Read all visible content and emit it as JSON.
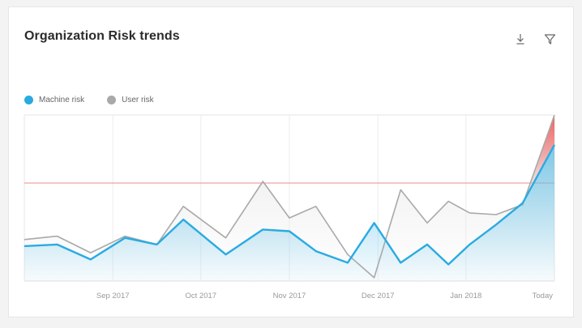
{
  "card": {
    "title": "Organization Risk trends",
    "actions": [
      {
        "name": "download",
        "icon": "download-icon"
      },
      {
        "name": "filter",
        "icon": "filter-icon"
      }
    ]
  },
  "colors": {
    "machine_risk": "#29abe2",
    "user_risk": "#a9a9a9",
    "threshold": "#f28b8b",
    "high_risk_fill": "#f25b5b"
  },
  "chart_data": {
    "type": "area",
    "title": "Organization Risk trends",
    "x_ticks": [
      "Sep 2017",
      "Oct 2017",
      "Nov 2017",
      "Dec 2017",
      "Jan 2018",
      "Today"
    ],
    "ylim": [
      0,
      100
    ],
    "threshold": 59,
    "grid": true,
    "legend_position": "top-left",
    "x": [
      0,
      0.062,
      0.125,
      0.19,
      0.25,
      0.3,
      0.38,
      0.45,
      0.5,
      0.55,
      0.61,
      0.66,
      0.71,
      0.76,
      0.8,
      0.84,
      0.89,
      0.94,
      1.0
    ],
    "series": [
      {
        "name": "User risk",
        "values": [
          25,
          27,
          17,
          27,
          22,
          45,
          26,
          60,
          38,
          45,
          16,
          2,
          55,
          35,
          48,
          41,
          40,
          46,
          100
        ]
      },
      {
        "name": "Machine risk",
        "values": [
          21,
          22,
          13,
          26,
          22,
          37,
          16,
          31,
          30,
          18,
          11,
          35,
          11,
          22,
          10,
          22,
          34,
          47,
          82
        ]
      }
    ]
  }
}
